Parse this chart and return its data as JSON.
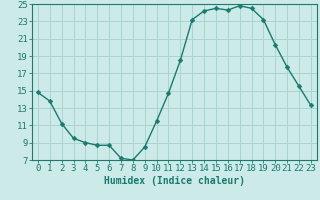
{
  "x": [
    0,
    1,
    2,
    3,
    4,
    5,
    6,
    7,
    8,
    9,
    10,
    11,
    12,
    13,
    14,
    15,
    16,
    17,
    18,
    19,
    20,
    21,
    22,
    23
  ],
  "y": [
    14.8,
    13.8,
    11.2,
    9.5,
    9.0,
    8.7,
    8.7,
    7.2,
    7.0,
    8.5,
    11.5,
    14.7,
    18.5,
    23.2,
    24.2,
    24.5,
    24.3,
    24.8,
    24.5,
    23.2,
    20.3,
    17.7,
    15.5,
    13.3
  ],
  "line_color": "#1a7a6e",
  "marker": "D",
  "marker_size": 2.5,
  "bg_color": "#cceae7",
  "grid_color": "#aad4d0",
  "xlabel": "Humidex (Indice chaleur)",
  "ylabel": "",
  "ylim": [
    7,
    25
  ],
  "yticks": [
    7,
    9,
    11,
    13,
    15,
    17,
    19,
    21,
    23,
    25
  ],
  "xlim": [
    -0.5,
    23.5
  ],
  "xticks": [
    0,
    1,
    2,
    3,
    4,
    5,
    6,
    7,
    8,
    9,
    10,
    11,
    12,
    13,
    14,
    15,
    16,
    17,
    18,
    19,
    20,
    21,
    22,
    23
  ],
  "tick_color": "#1a7a6e",
  "label_color": "#1a7a6e",
  "xlabel_fontsize": 7,
  "tick_fontsize": 6.5
}
